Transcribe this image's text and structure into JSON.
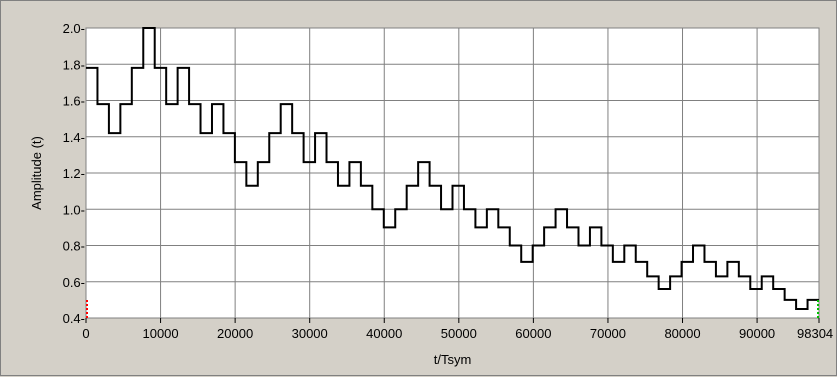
{
  "chart_data": {
    "type": "line",
    "step": true,
    "title": "",
    "xlabel": "t/Tsym",
    "ylabel": "Amplitude (t)",
    "xlim": [
      0,
      98304
    ],
    "ylim": [
      0.4,
      2.0
    ],
    "grid": true,
    "x_ticks": [
      0,
      10000,
      20000,
      30000,
      40000,
      50000,
      60000,
      70000,
      80000,
      90000,
      98304
    ],
    "x_tick_labels": [
      "0",
      "10000",
      "20000",
      "30000",
      "40000",
      "50000",
      "60000",
      "70000",
      "80000",
      "90000",
      "98304"
    ],
    "y_ticks": [
      0.4,
      0.6,
      0.8,
      1.0,
      1.2,
      1.4,
      1.6,
      1.8,
      2.0
    ],
    "y_tick_labels": [
      "0.4-",
      "0.6-",
      "0.8-",
      "1.0-",
      "1.2-",
      "1.4-",
      "1.6-",
      "1.8-",
      "2.0-"
    ],
    "series": [
      {
        "x": [
          0,
          1536,
          3072,
          4608,
          6144,
          7680,
          9216,
          10752,
          12288,
          13824,
          15360,
          16896,
          18432,
          19968,
          21504,
          23040,
          24576,
          26112,
          27648,
          29184,
          30720,
          32256,
          33792,
          35328,
          36864,
          38400,
          39936,
          41472,
          43008,
          44544,
          46080,
          47616,
          49152,
          50688,
          52224,
          53760,
          55296,
          56832,
          58368,
          59904,
          61440,
          62976,
          64512,
          66048,
          67584,
          69120,
          70656,
          72192,
          73728,
          75264,
          76800,
          78336,
          79872,
          81408,
          82944,
          84480,
          86016,
          87552,
          89088,
          90624,
          92160,
          93696,
          95232,
          96768,
          98304
        ],
        "y": [
          1.78,
          1.58,
          1.42,
          1.58,
          1.78,
          2.0,
          1.78,
          1.58,
          1.78,
          1.58,
          1.42,
          1.58,
          1.42,
          1.26,
          1.13,
          1.26,
          1.42,
          1.58,
          1.42,
          1.26,
          1.42,
          1.26,
          1.13,
          1.26,
          1.13,
          1.0,
          0.9,
          1.0,
          1.13,
          1.26,
          1.13,
          1.0,
          1.13,
          1.0,
          0.9,
          1.0,
          0.9,
          0.8,
          0.71,
          0.8,
          0.9,
          1.0,
          0.9,
          0.8,
          0.9,
          0.8,
          0.71,
          0.8,
          0.71,
          0.63,
          0.56,
          0.63,
          0.71,
          0.8,
          0.71,
          0.63,
          0.71,
          0.63,
          0.56,
          0.63,
          0.56,
          0.5,
          0.45,
          0.5,
          0.5
        ],
        "color": "#000000"
      }
    ],
    "plot_bg": "#ffffff",
    "grid_color": "#808080",
    "cursor_colors": [
      "#ff0000",
      "#00c000"
    ]
  }
}
